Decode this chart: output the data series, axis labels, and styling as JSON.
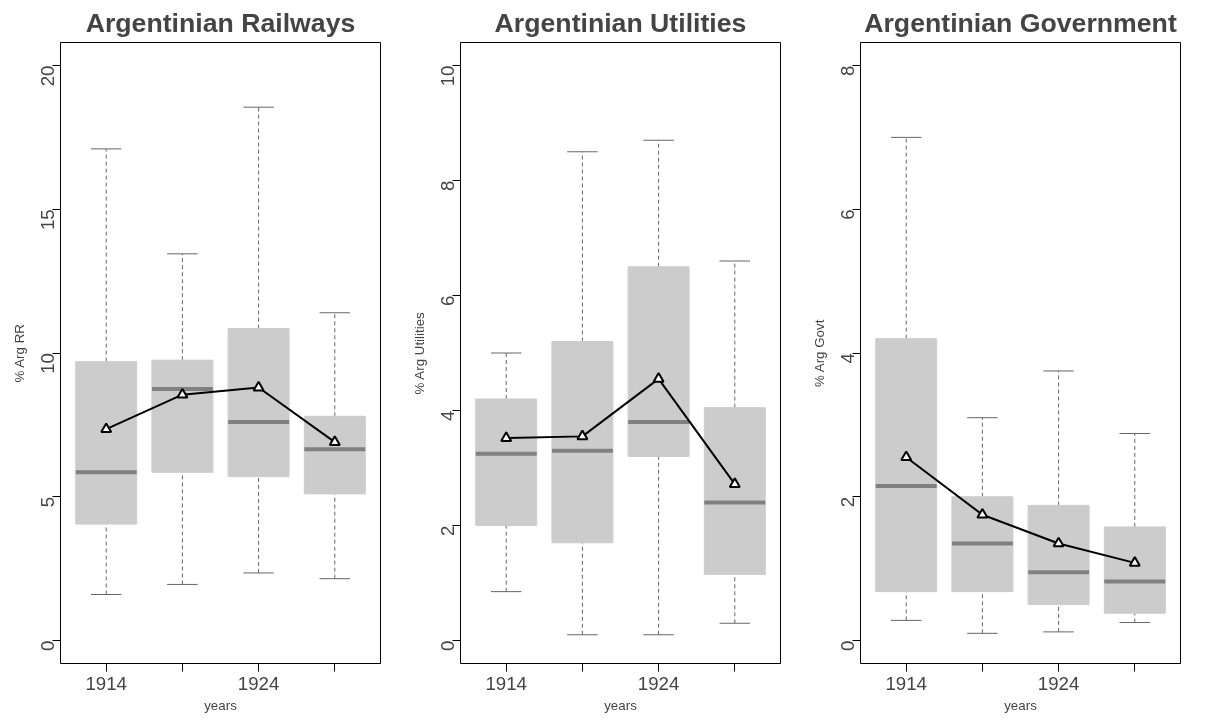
{
  "chart_data": [
    {
      "type": "box",
      "title": "Argentinian Railways",
      "xlabel": "years",
      "ylabel": "% Arg RR",
      "categories": [
        "1914",
        null,
        "1924",
        null
      ],
      "color": "#cccccc",
      "ylim": [
        -0.8,
        20.8
      ],
      "yticks": [
        0,
        5,
        10,
        15,
        20
      ],
      "marker": "triangle",
      "boxes": [
        {
          "low": 1.6,
          "q1": 4.05,
          "median": 5.85,
          "q3": 9.7,
          "high": 17.1
        },
        {
          "low": 1.95,
          "q1": 5.85,
          "median": 8.75,
          "q3": 9.75,
          "high": 13.45
        },
        {
          "low": 2.35,
          "q1": 5.7,
          "median": 7.6,
          "q3": 10.85,
          "high": 18.55
        },
        {
          "low": 2.15,
          "q1": 5.1,
          "median": 6.65,
          "q3": 7.8,
          "high": 11.4
        }
      ],
      "series": [
        {
          "type": "line",
          "color": "#000000",
          "values": [
            7.35,
            8.55,
            8.8,
            6.9
          ]
        }
      ]
    },
    {
      "type": "box",
      "title": "Argentinian Utilities",
      "xlabel": "years",
      "ylabel": "% Arg Utilities",
      "categories": [
        "1914",
        null,
        "1924",
        null
      ],
      "color": "#cccccc",
      "ylim": [
        -0.4,
        10.4
      ],
      "yticks": [
        0,
        2,
        4,
        6,
        8,
        10
      ],
      "marker": "triangle",
      "boxes": [
        {
          "low": 0.85,
          "q1": 2.0,
          "median": 3.25,
          "q3": 4.2,
          "high": 5.0
        },
        {
          "low": 0.1,
          "q1": 1.7,
          "median": 3.3,
          "q3": 5.2,
          "high": 8.5
        },
        {
          "low": 0.1,
          "q1": 3.2,
          "median": 3.8,
          "q3": 6.5,
          "high": 8.7
        },
        {
          "low": 0.3,
          "q1": 1.15,
          "median": 2.4,
          "q3": 4.05,
          "high": 6.6
        }
      ],
      "series": [
        {
          "type": "line",
          "color": "#000000",
          "values": [
            3.52,
            3.55,
            4.55,
            2.72
          ]
        }
      ]
    },
    {
      "type": "box",
      "title": "Argentinian Government",
      "xlabel": "years",
      "ylabel": "% Arg Govt",
      "categories": [
        "1914",
        null,
        "1924",
        null
      ],
      "color": "#cccccc",
      "ylim": [
        -0.32,
        8.32
      ],
      "yticks": [
        0,
        2,
        4,
        6,
        8
      ],
      "marker": "triangle",
      "boxes": [
        {
          "low": 0.28,
          "q1": 0.68,
          "median": 2.15,
          "q3": 4.2,
          "high": 7.0
        },
        {
          "low": 0.1,
          "q1": 0.68,
          "median": 1.35,
          "q3": 2.0,
          "high": 3.1
        },
        {
          "low": 0.12,
          "q1": 0.5,
          "median": 0.95,
          "q3": 1.88,
          "high": 3.75
        },
        {
          "low": 0.25,
          "q1": 0.38,
          "median": 0.82,
          "q3": 1.58,
          "high": 2.88
        }
      ],
      "series": [
        {
          "type": "line",
          "color": "#000000",
          "values": [
            2.55,
            1.75,
            1.35,
            1.08
          ]
        }
      ]
    }
  ]
}
